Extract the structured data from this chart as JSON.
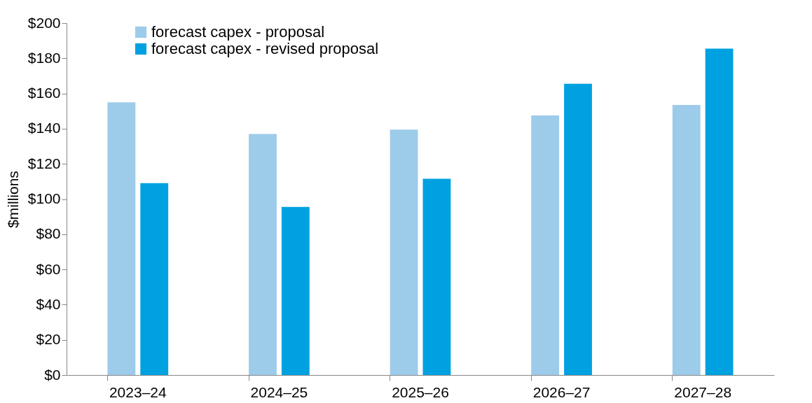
{
  "chart_data": {
    "type": "bar",
    "ylabel": "$millions",
    "categories": [
      "2023–24",
      "2024–25",
      "2025–26",
      "2026–27",
      "2027–28"
    ],
    "series": [
      {
        "name": "forecast capex - proposal",
        "color": "#9dcbea",
        "values": [
          155,
          137,
          139.5,
          147.5,
          153.5
        ]
      },
      {
        "name": "forecast capex - revised proposal",
        "color": "#00a1e0",
        "values": [
          109,
          95.5,
          111.5,
          165.5,
          185.5
        ]
      }
    ],
    "ylim": [
      0,
      200
    ],
    "yticks": [
      {
        "value": 0,
        "label": "$0"
      },
      {
        "value": 20,
        "label": "$20"
      },
      {
        "value": 40,
        "label": "$40"
      },
      {
        "value": 60,
        "label": "$60"
      },
      {
        "value": 80,
        "label": "$80"
      },
      {
        "value": 100,
        "label": "$100"
      },
      {
        "value": 120,
        "label": "$120"
      },
      {
        "value": 140,
        "label": "$140"
      },
      {
        "value": 160,
        "label": "$160"
      },
      {
        "value": 180,
        "label": "$180"
      },
      {
        "value": 200,
        "label": "$200"
      }
    ],
    "grid": false,
    "legend": "top left"
  }
}
